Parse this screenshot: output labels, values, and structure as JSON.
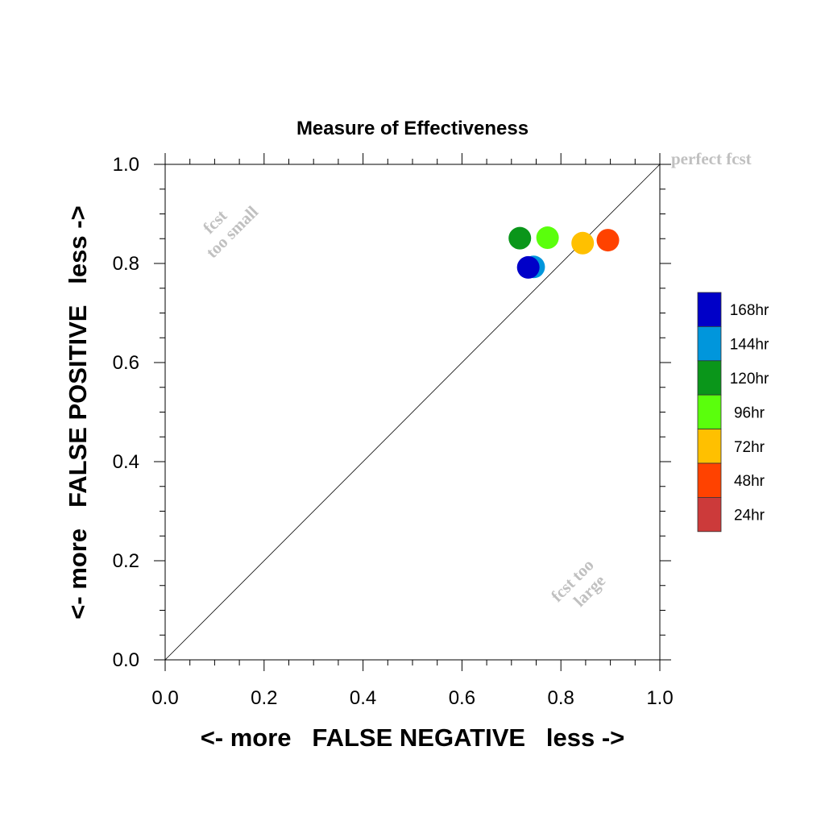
{
  "chart_data": {
    "type": "scatter",
    "title": "Measure of Effectiveness",
    "xlabel": "<- more   FALSE NEGATIVE   less ->",
    "ylabel": "<- more   FALSE POSITIVE   less ->",
    "xlim": [
      0,
      1
    ],
    "ylim": [
      0,
      1
    ],
    "xticks": [
      "0.0",
      "0.2",
      "0.4",
      "0.6",
      "0.8",
      "1.0"
    ],
    "yticks": [
      "0.0",
      "0.2",
      "0.4",
      "0.6",
      "0.8",
      "1.0"
    ],
    "grid": false,
    "reference_line": {
      "from": [
        0,
        0
      ],
      "to": [
        1,
        1
      ]
    },
    "annotations": {
      "perfect": "perfect fcst",
      "small_line1": "fcst",
      "small_line2": "too small",
      "large_line1": "fcst too",
      "large_line2": "large"
    },
    "series": [
      {
        "name": "24hr",
        "color": "#cc3a3a",
        "points": []
      },
      {
        "name": "48hr",
        "color": "#ff4200",
        "points": [
          [
            0.895,
            0.847
          ]
        ]
      },
      {
        "name": "72hr",
        "color": "#ffc000",
        "points": [
          [
            0.844,
            0.841
          ]
        ]
      },
      {
        "name": "96hr",
        "color": "#5aff0c",
        "points": [
          [
            0.773,
            0.852
          ]
        ]
      },
      {
        "name": "120hr",
        "color": "#0a961a",
        "points": [
          [
            0.717,
            0.851
          ]
        ]
      },
      {
        "name": "144hr",
        "color": "#0096dc",
        "points": [
          [
            0.745,
            0.793
          ]
        ]
      },
      {
        "name": "168hr",
        "color": "#0000c8",
        "points": [
          [
            0.734,
            0.792
          ]
        ]
      }
    ],
    "legend_position": "right"
  }
}
